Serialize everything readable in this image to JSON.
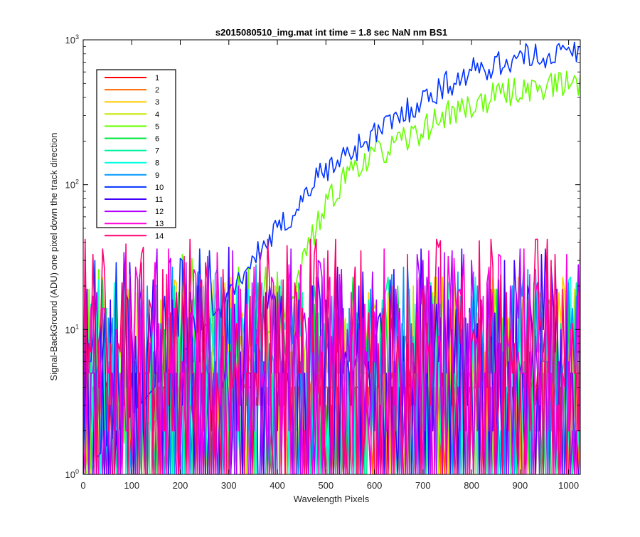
{
  "chart_data": {
    "type": "line",
    "title": "s2015080510_img.mat int time = 1.8 sec  NaN nm BS1",
    "xlabel": "Wavelength Pixels",
    "ylabel": "Signal-BackGround (ADU) one pixel down the track direction",
    "xlim": [
      0,
      1024
    ],
    "ylim": [
      1,
      1000
    ],
    "yscale": "log",
    "grid": false,
    "legend_position": "top-left",
    "x_ticks": [
      0,
      100,
      200,
      300,
      400,
      500,
      600,
      700,
      800,
      900,
      1000
    ],
    "y_ticks": [
      {
        "value": 1,
        "base": "10",
        "exp": "0"
      },
      {
        "value": 10,
        "base": "10",
        "exp": "1"
      },
      {
        "value": 100,
        "base": "10",
        "exp": "2"
      },
      {
        "value": 1000,
        "base": "10",
        "exp": "3"
      }
    ],
    "x_step": 4,
    "series": [
      {
        "name": "1",
        "color": "#ff0000",
        "kind": "noise",
        "seed": 11,
        "level": 0.0
      },
      {
        "name": "2",
        "color": "#ff6a00",
        "kind": "noise",
        "seed": 23,
        "level": 0.0
      },
      {
        "name": "3",
        "color": "#ffcc00",
        "kind": "noise",
        "seed": 37,
        "level": 0.8
      },
      {
        "name": "4",
        "color": "#c8e600",
        "kind": "noise",
        "seed": 41,
        "level": 0.8
      },
      {
        "name": "5",
        "color": "#66ff00",
        "kind": "signal",
        "seed": 53,
        "level": 1.0,
        "knots": [
          [
            0,
            1
          ],
          [
            420,
            12
          ],
          [
            460,
            35
          ],
          [
            500,
            70
          ],
          [
            550,
            130
          ],
          [
            600,
            160
          ],
          [
            650,
            190
          ],
          [
            700,
            240
          ],
          [
            750,
            310
          ],
          [
            800,
            350
          ],
          [
            850,
            410
          ],
          [
            900,
            450
          ],
          [
            950,
            480
          ],
          [
            1000,
            500
          ],
          [
            1024,
            510
          ]
        ]
      },
      {
        "name": "6",
        "color": "#00e640",
        "kind": "noise",
        "seed": 67,
        "level": 0.8
      },
      {
        "name": "7",
        "color": "#00f2a0",
        "kind": "noise",
        "seed": 79,
        "level": 0.8
      },
      {
        "name": "8",
        "color": "#00ffe0",
        "kind": "noise",
        "seed": 83,
        "level": 0.8
      },
      {
        "name": "9",
        "color": "#0099ff",
        "kind": "noise",
        "seed": 97,
        "level": 0.9
      },
      {
        "name": "10",
        "color": "#0033ff",
        "kind": "signal",
        "seed": 101,
        "level": 1.0,
        "knots": [
          [
            0,
            1
          ],
          [
            280,
            14
          ],
          [
            330,
            25
          ],
          [
            380,
            40
          ],
          [
            430,
            62
          ],
          [
            480,
            110
          ],
          [
            530,
            150
          ],
          [
            580,
            200
          ],
          [
            630,
            260
          ],
          [
            680,
            350
          ],
          [
            730,
            450
          ],
          [
            780,
            560
          ],
          [
            830,
            650
          ],
          [
            880,
            720
          ],
          [
            930,
            770
          ],
          [
            980,
            800
          ],
          [
            1024,
            820
          ]
        ]
      },
      {
        "name": "11",
        "color": "#4000ff",
        "kind": "noise",
        "seed": 113,
        "level": 1.0
      },
      {
        "name": "12",
        "color": "#b300ff",
        "kind": "noise",
        "seed": 127,
        "level": 1.0
      },
      {
        "name": "13",
        "color": "#ff00d9",
        "kind": "noise",
        "seed": 131,
        "level": 1.0
      },
      {
        "name": "14",
        "color": "#ff0073",
        "kind": "noise",
        "seed": 139,
        "level": 1.1
      }
    ]
  }
}
